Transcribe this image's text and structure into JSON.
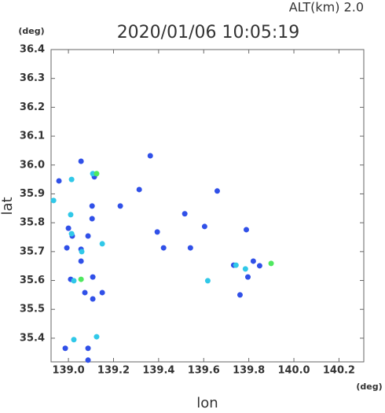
{
  "chart_data": {
    "type": "scatter",
    "title": "2020/01/06 10:05:19",
    "subtitle": "ALT(km) 2.0",
    "y_unit": "(deg)",
    "x_unit": "(deg)",
    "x_label": "lon",
    "y_label": "lat",
    "xlim": [
      138.923,
      140.31
    ],
    "ylim": [
      35.318,
      36.4
    ],
    "xticks": [
      {
        "value": 139,
        "label": "139.0"
      },
      139.2,
      139.4,
      139.6,
      139.8,
      {
        "value": 140,
        "label": "140.0"
      },
      140.2
    ],
    "yticks": [
      35.4,
      35.5,
      35.6,
      35.7,
      35.8,
      35.9,
      {
        "value": 36,
        "label": "36.0"
      },
      36.1,
      36.2,
      36.3,
      36.4
    ],
    "series": [
      {
        "color": "#3050e8",
        "x": [
          139.056,
          139.115,
          139.105,
          139.105,
          139.0,
          139.017,
          138.993,
          139.056,
          139.056,
          139.01,
          139.108,
          139.15,
          139.108,
          138.986,
          139.087,
          139.087,
          139.363,
          139.314,
          139.23,
          139.66,
          139.604,
          139.422,
          139.541,
          139.789,
          139.733,
          139.796,
          139.761,
          139.82,
          139.848,
          139.073,
          138.958,
          139.087,
          139.516,
          139.394
        ],
        "values": [
          36.013,
          35.959,
          35.858,
          35.814,
          35.781,
          35.754,
          35.713,
          35.667,
          35.708,
          35.604,
          35.612,
          35.558,
          35.536,
          35.365,
          35.365,
          35.324,
          36.032,
          35.915,
          35.858,
          35.91,
          35.787,
          35.713,
          35.713,
          35.776,
          35.653,
          35.612,
          35.55,
          35.667,
          35.651,
          35.558,
          35.945,
          35.754,
          35.831,
          35.768
        ]
      },
      {
        "color": "#30c8e8",
        "x": [
          139.014,
          138.934,
          139.01,
          139.014,
          139.024,
          139.059,
          139.024,
          139.125,
          139.108,
          139.618,
          139.785,
          139.743,
          139.15
        ],
        "values": [
          35.95,
          35.877,
          35.828,
          35.762,
          35.599,
          35.7,
          35.395,
          35.405,
          35.97,
          35.599,
          35.64,
          35.653,
          35.727
        ]
      },
      {
        "color": "#50e860",
        "x": [
          139.056,
          139.899,
          139.125
        ],
        "values": [
          35.604,
          35.659,
          35.97
        ]
      }
    ]
  }
}
